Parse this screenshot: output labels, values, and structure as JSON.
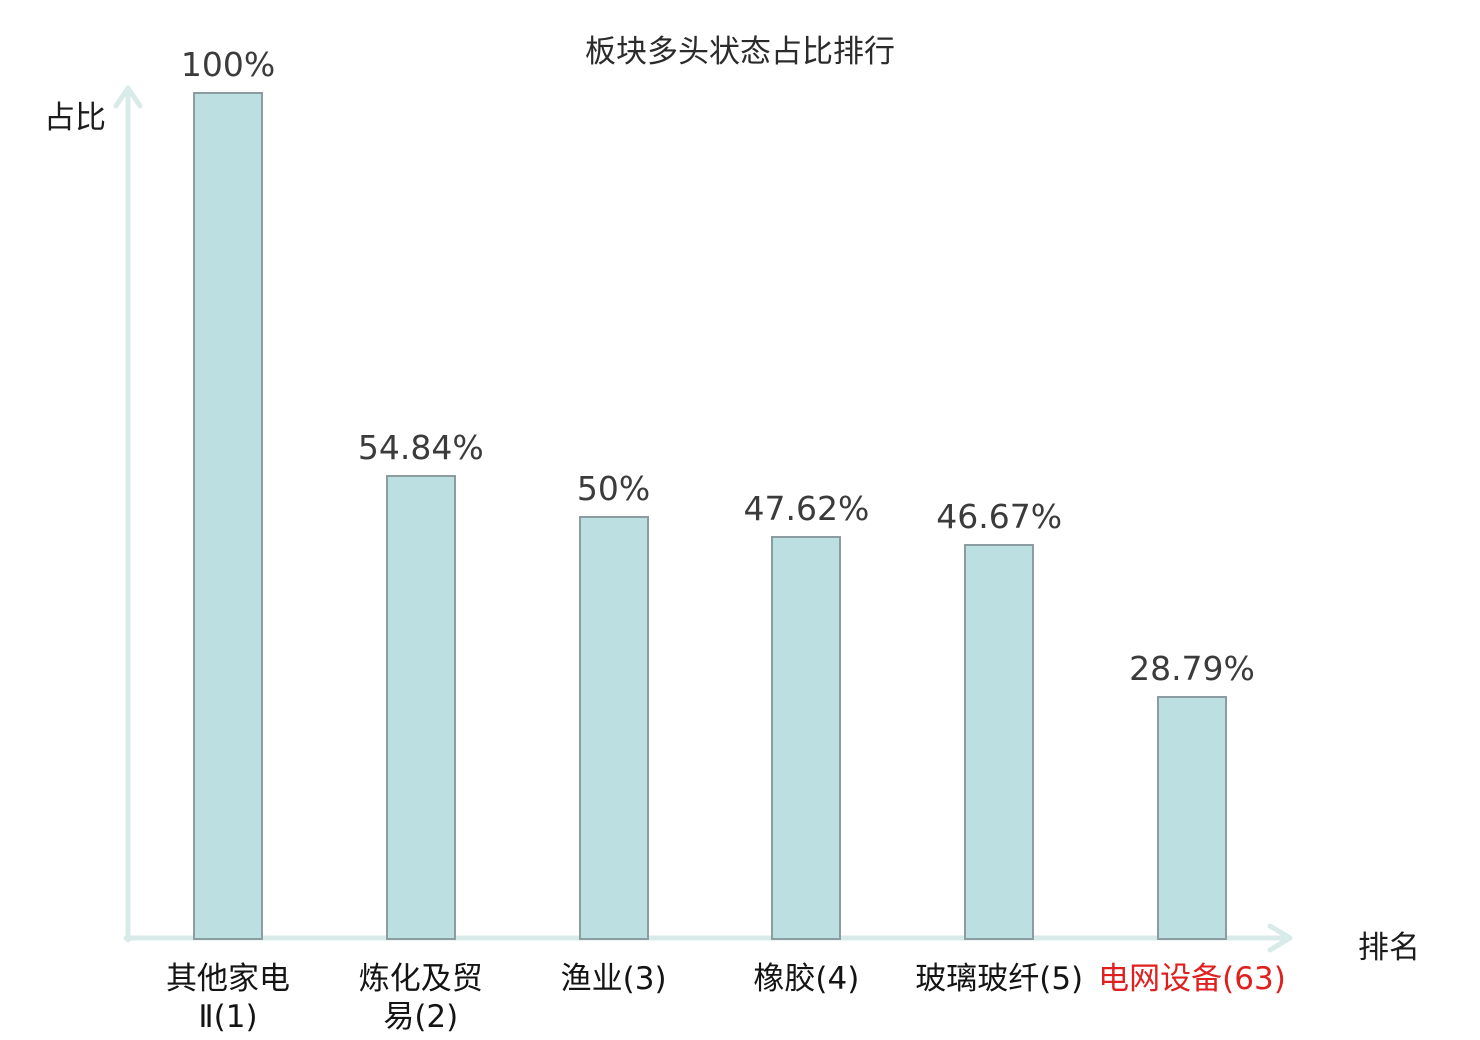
{
  "title": "板块多头状态占比排行",
  "axes": {
    "y_label": "占比",
    "x_label": "排名"
  },
  "colors": {
    "bar_fill": "#bcdfe1",
    "bar_border": "#8b9da0",
    "axis_line": "#d9ebe8",
    "value_text": "#3b3b3b",
    "category_text": "#141414",
    "highlight_text": "#e01f1f",
    "background": "#ffffff"
  },
  "chart_data": {
    "type": "bar",
    "title": "板块多头状态占比排行",
    "xlabel": "排名",
    "ylabel": "占比",
    "ylim": [
      0,
      100
    ],
    "grid": false,
    "legend": null,
    "categories": [
      "其他家电Ⅱ(1)",
      "炼化及贸易(2)",
      "渔业(3)",
      "橡胶(4)",
      "玻璃玻纤(5)",
      "电网设备(63)"
    ],
    "category_display": [
      "其他家电\nⅡ(1)",
      "炼化及贸\n易(2)",
      "渔业(3)",
      "橡胶(4)",
      "玻璃玻纤(5)",
      "电网设备(63)"
    ],
    "values": [
      100,
      54.84,
      50,
      47.62,
      46.67,
      28.79
    ],
    "value_labels": [
      "100%",
      "54.84%",
      "50%",
      "47.62%",
      "46.67%",
      "28.79%"
    ],
    "highlighted_index": 5
  }
}
